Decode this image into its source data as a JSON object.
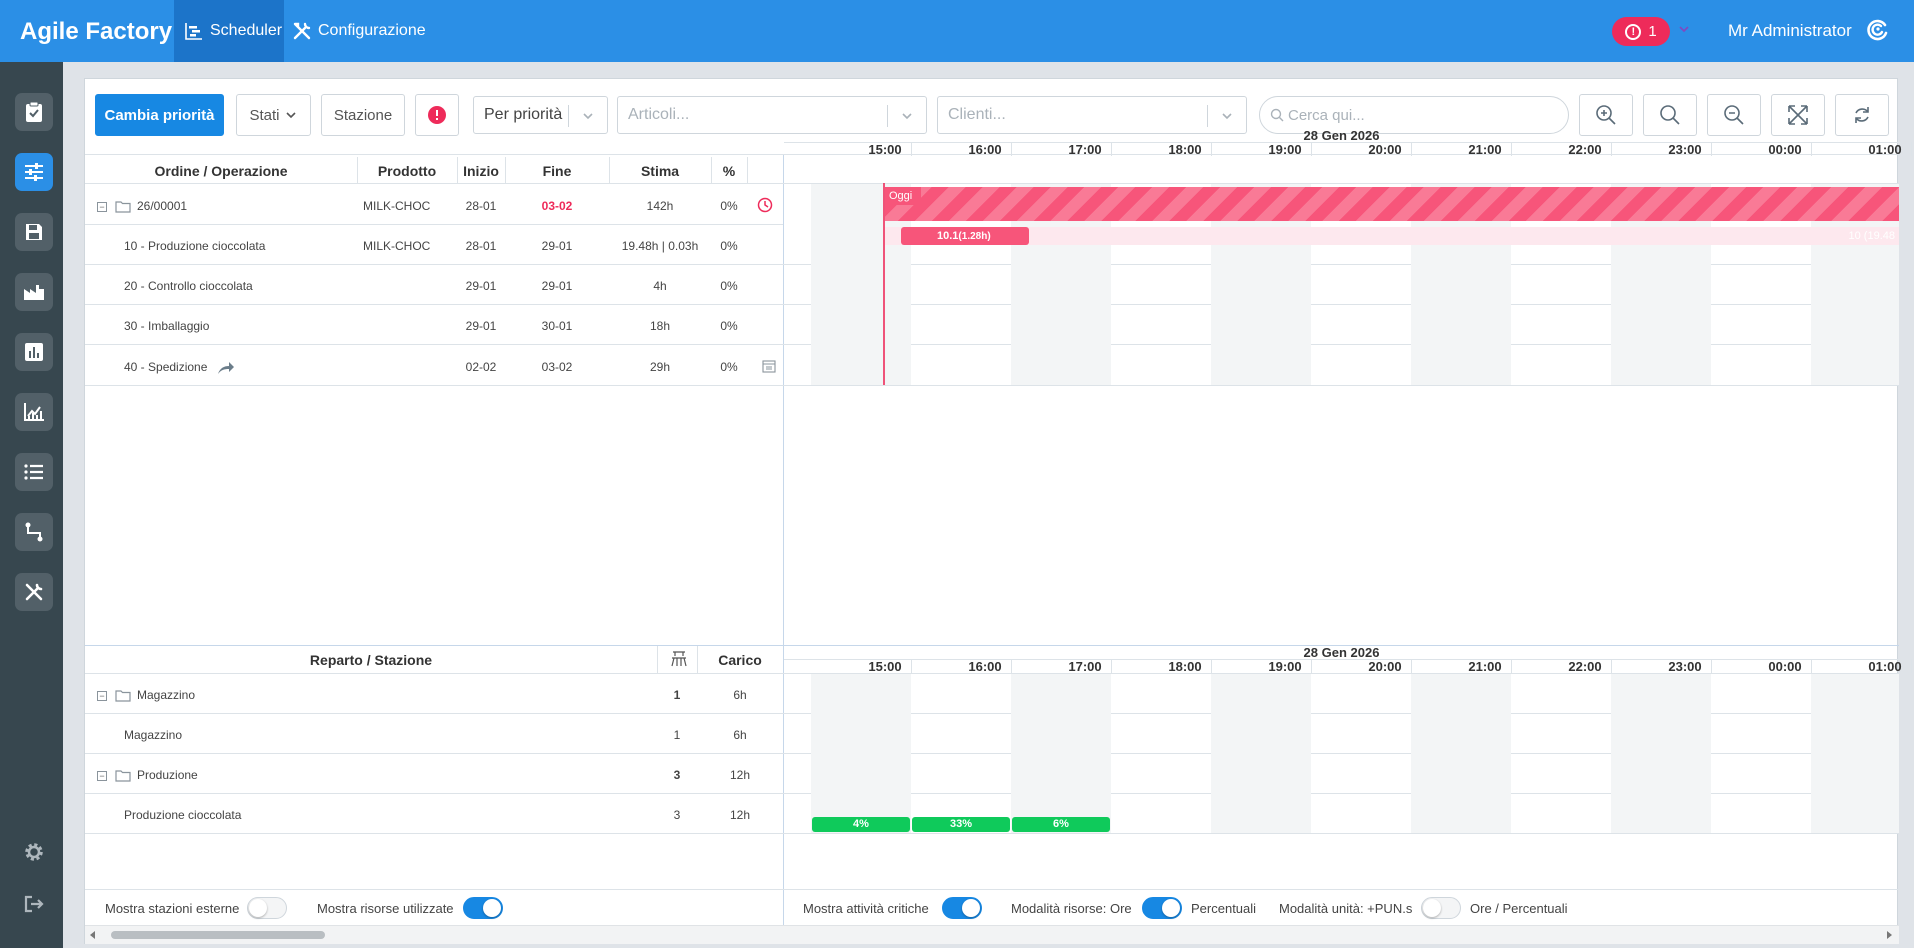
{
  "app": {
    "title": "Agile Factory"
  },
  "nav": {
    "scheduler": "Scheduler",
    "config": "Configurazione"
  },
  "header": {
    "alert_count": "1",
    "user": "Mr Administrator"
  },
  "toolbar": {
    "change_priority": "Cambia priorità",
    "states": "Stati",
    "station": "Stazione",
    "sort": "Per priorità",
    "articles_placeholder": "Articoli...",
    "clients_placeholder": "Clienti...",
    "search_placeholder": "Cerca qui..."
  },
  "orders": {
    "columns": [
      "Ordine / Operazione",
      "Prodotto",
      "Inizio",
      "Fine",
      "Stima",
      "%"
    ],
    "rows": [
      {
        "name": "26/00001",
        "product": "MILK-CHOC",
        "start": "28-01",
        "end": "03-02",
        "estimate": "142h",
        "pct": "0%"
      },
      {
        "name": "10 - Produzione cioccolata",
        "product": "MILK-CHOC",
        "start": "28-01",
        "end": "29-01",
        "estimate": "19.48h | 0.03h",
        "pct": "0%"
      },
      {
        "name": "20 - Controllo cioccolata",
        "product": "",
        "start": "29-01",
        "end": "29-01",
        "estimate": "4h",
        "pct": "0%"
      },
      {
        "name": "30 - Imballaggio",
        "product": "",
        "start": "29-01",
        "end": "30-01",
        "estimate": "18h",
        "pct": "0%"
      },
      {
        "name": "40 - Spedizione",
        "product": "",
        "start": "02-02",
        "end": "03-02",
        "estimate": "29h",
        "pct": "0%"
      }
    ]
  },
  "timeline": {
    "date": "28 Gen 2026",
    "hours": [
      "15:00",
      "16:00",
      "17:00",
      "18:00",
      "19:00",
      "20:00",
      "21:00",
      "22:00",
      "23:00",
      "00:00",
      "01:00"
    ],
    "today_label": "Oggi",
    "bar_main": "10.1",
    "bar_sub": "(1.28h)",
    "bar_faded": "10 (19.48"
  },
  "stations": {
    "columns": [
      "Reparto / Stazione",
      "Carico"
    ],
    "rows": [
      {
        "name": "Magazzino",
        "count": "1",
        "load": "6h"
      },
      {
        "name": "Magazzino",
        "count": "1",
        "load": "6h"
      },
      {
        "name": "Produzione",
        "count": "3",
        "load": "12h"
      },
      {
        "name": "Produzione cioccolata",
        "count": "3",
        "load": "12h"
      }
    ],
    "load_bars": [
      "4%",
      "33%",
      "6%"
    ]
  },
  "footer": {
    "external": "Mostra stazioni esterne",
    "resources_used": "Mostra risorse utilizzate",
    "critical": "Mostra attività critiche",
    "res_mode": "Modalità risorse: Ore",
    "res_mode_alt": "Percentuali",
    "unit_mode": "Modalità unità: +PUN.s",
    "unit_mode_alt": "Ore / Percentuali"
  },
  "colors": {
    "primary": "#1788e3",
    "topbar": "#2b8fe6",
    "alert": "#ee2b5a",
    "gantt_bar": "#f7557a",
    "load_bar": "#0fca5b"
  }
}
